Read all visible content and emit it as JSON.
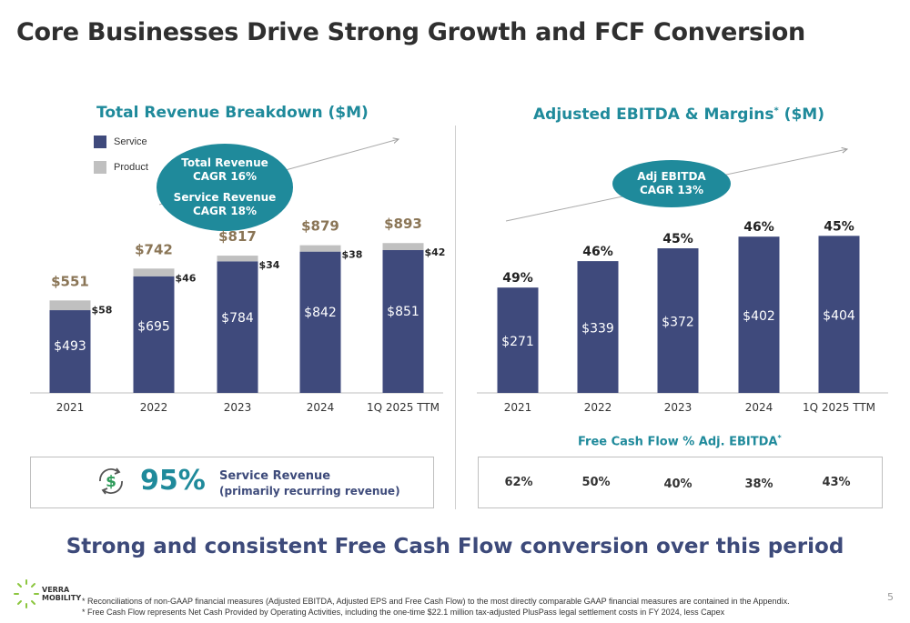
{
  "title": "Core Businesses Drive Strong Growth and FCF Conversion",
  "colors": {
    "accent": "#1f8a9b",
    "navy": "#3d4a7a",
    "service": "#3f4a7c",
    "product": "#c0c0c0"
  },
  "left_panel": {
    "title": "Total Revenue Breakdown ($M)",
    "legend": [
      {
        "label": "Service",
        "color": "#3f4a7c"
      },
      {
        "label": "Product",
        "color": "#c0c0c0"
      }
    ],
    "cagr": {
      "line1": "Total Revenue",
      "line2": "CAGR 16%",
      "line3": "Service Revenue",
      "line4": "CAGR 18%"
    }
  },
  "right_panel": {
    "title": "Adjusted EBITDA & Margins",
    "title_marker": "*",
    "title_unit": " ($M)",
    "cagr": {
      "line1": "Adj EBITDA",
      "line2": "CAGR 13%"
    }
  },
  "service_box": {
    "percent": "95%",
    "label": "Service Revenue",
    "sublabel": "(primarily recurring revenue)",
    "icon": "dollar-cycle-icon"
  },
  "fcf": {
    "title": "Free Cash Flow % Adj. EBITDA",
    "title_marker": "*",
    "values": [
      "62%",
      "50%",
      "40%",
      "38%",
      "43%"
    ]
  },
  "tagline": "Strong and consistent Free Cash Flow conversion over this period",
  "footnotes": [
    "* Reconciliations of non-GAAP financial measures (Adjusted EBITDA, Adjusted EPS and Free Cash Flow) to the most directly comparable GAAP financial measures are contained in the Appendix.",
    "* Free Cash Flow represents Net Cash Provided by Operating Activities, including the one-time $22.1 million tax-adjusted PlusPass legal settlement costs in FY 2024, less Capex"
  ],
  "page_number": "5",
  "logo": {
    "line1": "VERRA",
    "line2": "MOBILITY"
  },
  "chart_data": [
    {
      "type": "bar",
      "stacked": true,
      "title": "Total Revenue Breakdown ($M)",
      "categories": [
        "2021",
        "2022",
        "2023",
        "2024",
        "1Q 2025 TTM"
      ],
      "series": [
        {
          "name": "Service",
          "values": [
            493,
            695,
            784,
            842,
            851
          ],
          "labels": [
            "$493",
            "$695",
            "$784",
            "$842",
            "$851"
          ]
        },
        {
          "name": "Product",
          "values": [
            58,
            46,
            34,
            38,
            42
          ],
          "labels": [
            "$58",
            "$46",
            "$34",
            "$38",
            "$42"
          ]
        }
      ],
      "totals": [
        551,
        742,
        817,
        879,
        893
      ],
      "total_labels": [
        "$551",
        "$742",
        "$817",
        "$879",
        "$893"
      ],
      "ylim": [
        0,
        950
      ],
      "grid": false,
      "legend": "top-left"
    },
    {
      "type": "bar",
      "title": "Adjusted EBITDA & Margins* ($M)",
      "categories": [
        "2021",
        "2022",
        "2023",
        "2024",
        "1Q 2025 TTM"
      ],
      "values": [
        271,
        339,
        372,
        402,
        404
      ],
      "value_labels": [
        "$271",
        "$339",
        "$372",
        "$402",
        "$404"
      ],
      "margins": [
        "49%",
        "46%",
        "45%",
        "46%",
        "45%"
      ],
      "ylim": [
        0,
        450
      ],
      "grid": false
    }
  ]
}
